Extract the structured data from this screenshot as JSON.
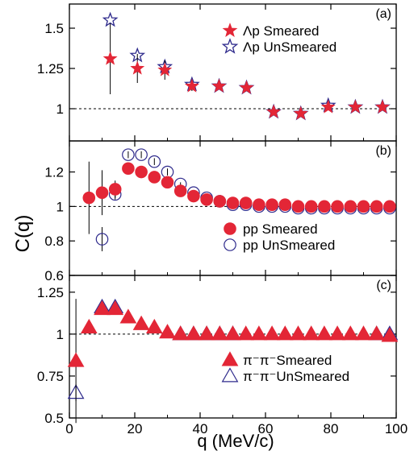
{
  "colors": {
    "red": "#e32636",
    "blue": "#2e2a8c",
    "axis": "#000000",
    "errbar": "#000000"
  },
  "chart_data": {
    "type": "scatter",
    "xlabel": "q (MeV/c)",
    "ylabel": "C(q)",
    "xlim": [
      0,
      100
    ],
    "x_ticks": [
      0,
      20,
      40,
      60,
      80,
      100
    ],
    "x_tick_labels": [
      "0",
      "20",
      "40",
      "60",
      "80",
      "100"
    ],
    "panels": [
      {
        "label": "(a)",
        "ylim": [
          0.8,
          1.65
        ],
        "y_ticks": [
          1,
          1.25,
          1.5
        ],
        "y_tick_labels": [
          "1",
          "1.25",
          "1.5"
        ],
        "reference_line": 1,
        "marker": "star",
        "series": [
          {
            "name": "Λp Smeared",
            "filled": true,
            "color": "red",
            "points": [
              {
                "x": 12.5,
                "y": 1.31,
                "err": 0.22
              },
              {
                "x": 20.8,
                "y": 1.25,
                "err": 0.09
              },
              {
                "x": 29.2,
                "y": 1.24,
                "err": 0.06
              },
              {
                "x": 37.5,
                "y": 1.14,
                "err": 0.03
              },
              {
                "x": 45.8,
                "y": 1.14,
                "err": 0.02
              },
              {
                "x": 54.2,
                "y": 1.13,
                "err": 0.02
              },
              {
                "x": 62.5,
                "y": 0.98,
                "err": 0.02
              },
              {
                "x": 70.8,
                "y": 0.97,
                "err": 0.02
              },
              {
                "x": 79.2,
                "y": 1.01,
                "err": 0.01
              },
              {
                "x": 87.5,
                "y": 1.01,
                "err": 0.01
              },
              {
                "x": 95.8,
                "y": 1.01,
                "err": 0.01
              }
            ]
          },
          {
            "name": "Λp UnSmeared",
            "filled": false,
            "color": "blue",
            "points": [
              {
                "x": 12.5,
                "y": 1.55,
                "err": 0.0
              },
              {
                "x": 20.8,
                "y": 1.33,
                "err": 0.0
              },
              {
                "x": 29.2,
                "y": 1.26,
                "err": 0.0
              },
              {
                "x": 37.5,
                "y": 1.15,
                "err": 0.0
              },
              {
                "x": 45.8,
                "y": 1.14,
                "err": 0.0
              },
              {
                "x": 54.2,
                "y": 1.13,
                "err": 0.0
              },
              {
                "x": 62.5,
                "y": 0.98,
                "err": 0.0
              },
              {
                "x": 70.8,
                "y": 0.97,
                "err": 0.0
              },
              {
                "x": 79.2,
                "y": 1.02,
                "err": 0.0
              },
              {
                "x": 87.5,
                "y": 1.01,
                "err": 0.0
              },
              {
                "x": 95.8,
                "y": 1.01,
                "err": 0.0
              }
            ]
          }
        ]
      },
      {
        "label": "(b)",
        "ylim": [
          0.6,
          1.38
        ],
        "y_ticks": [
          0.6,
          0.8,
          1,
          1.2
        ],
        "y_tick_labels": [
          "0.6",
          "0.8",
          "1",
          "1.2"
        ],
        "reference_line": 1,
        "marker": "circle",
        "series": [
          {
            "name": "pp Smeared",
            "filled": true,
            "color": "red",
            "points": [
              {
                "x": 6,
                "y": 1.05,
                "err": 0.21
              },
              {
                "x": 10,
                "y": 1.08,
                "err": 0.13
              },
              {
                "x": 14,
                "y": 1.1,
                "err": 0.05
              },
              {
                "x": 18,
                "y": 1.22,
                "err": 0.03
              },
              {
                "x": 22,
                "y": 1.2,
                "err": 0.02
              },
              {
                "x": 26,
                "y": 1.17,
                "err": 0.02
              },
              {
                "x": 30,
                "y": 1.14,
                "err": 0.02
              },
              {
                "x": 34,
                "y": 1.09,
                "err": 0.01
              },
              {
                "x": 38,
                "y": 1.06,
                "err": 0.01
              },
              {
                "x": 42,
                "y": 1.04,
                "err": 0.01
              },
              {
                "x": 46,
                "y": 1.03,
                "err": 0.01
              },
              {
                "x": 50,
                "y": 1.02,
                "err": 0.01
              },
              {
                "x": 54,
                "y": 1.02,
                "err": 0.01
              },
              {
                "x": 58,
                "y": 1.01,
                "err": 0.01
              },
              {
                "x": 62,
                "y": 1.01,
                "err": 0.01
              },
              {
                "x": 66,
                "y": 1.01,
                "err": 0.0
              },
              {
                "x": 70,
                "y": 1.0,
                "err": 0.0
              },
              {
                "x": 74,
                "y": 1.0,
                "err": 0.0
              },
              {
                "x": 78,
                "y": 1.0,
                "err": 0.0
              },
              {
                "x": 82,
                "y": 1.0,
                "err": 0.0
              },
              {
                "x": 86,
                "y": 1.0,
                "err": 0.0
              },
              {
                "x": 90,
                "y": 1.0,
                "err": 0.0
              },
              {
                "x": 94,
                "y": 1.0,
                "err": 0.0
              },
              {
                "x": 98,
                "y": 1.0,
                "err": 0.0
              }
            ]
          },
          {
            "name": "pp UnSmeared",
            "filled": false,
            "color": "blue",
            "points": [
              {
                "x": 10,
                "y": 0.81,
                "err": 0.07
              },
              {
                "x": 14,
                "y": 1.07,
                "err": 0.03
              },
              {
                "x": 18,
                "y": 1.3,
                "err": 0.02
              },
              {
                "x": 22,
                "y": 1.3,
                "err": 0.02
              },
              {
                "x": 26,
                "y": 1.26,
                "err": 0.02
              },
              {
                "x": 30,
                "y": 1.2,
                "err": 0.02
              },
              {
                "x": 34,
                "y": 1.13,
                "err": 0.01
              },
              {
                "x": 38,
                "y": 1.08,
                "err": 0.01
              },
              {
                "x": 42,
                "y": 1.05,
                "err": 0.01
              },
              {
                "x": 46,
                "y": 1.03,
                "err": 0.01
              },
              {
                "x": 50,
                "y": 1.01,
                "err": 0.0
              },
              {
                "x": 54,
                "y": 1.01,
                "err": 0.0
              },
              {
                "x": 58,
                "y": 1.0,
                "err": 0.0
              },
              {
                "x": 62,
                "y": 1.0,
                "err": 0.0
              },
              {
                "x": 66,
                "y": 1.0,
                "err": 0.0
              },
              {
                "x": 70,
                "y": 0.99,
                "err": 0.0
              },
              {
                "x": 74,
                "y": 0.99,
                "err": 0.0
              },
              {
                "x": 78,
                "y": 0.99,
                "err": 0.0
              },
              {
                "x": 82,
                "y": 0.99,
                "err": 0.0
              },
              {
                "x": 86,
                "y": 0.99,
                "err": 0.0
              },
              {
                "x": 90,
                "y": 0.99,
                "err": 0.0
              },
              {
                "x": 94,
                "y": 0.99,
                "err": 0.0
              },
              {
                "x": 98,
                "y": 0.99,
                "err": 0.0
              }
            ]
          }
        ]
      },
      {
        "label": "(c)",
        "ylim": [
          0.5,
          1.35
        ],
        "y_ticks": [
          0.5,
          0.75,
          1,
          1.25
        ],
        "y_tick_labels": [
          "0.5",
          "0.75",
          "1",
          "1.25"
        ],
        "reference_line": 1,
        "marker": "triangle",
        "series": [
          {
            "name": "π⁻π⁻Smeared",
            "filled": true,
            "color": "red",
            "points": [
              {
                "x": 2,
                "y": 0.84,
                "err": 0.37
              },
              {
                "x": 6,
                "y": 1.04,
                "err": 0.04
              },
              {
                "x": 10,
                "y": 1.15,
                "err": 0.02
              },
              {
                "x": 14,
                "y": 1.15,
                "err": 0.02
              },
              {
                "x": 18,
                "y": 1.1,
                "err": 0.01
              },
              {
                "x": 22,
                "y": 1.06,
                "err": 0.01
              },
              {
                "x": 26,
                "y": 1.04,
                "err": 0.01
              },
              {
                "x": 30,
                "y": 1.01,
                "err": 0.0
              },
              {
                "x": 34,
                "y": 1.0,
                "err": 0.0
              },
              {
                "x": 38,
                "y": 1.0,
                "err": 0.0
              },
              {
                "x": 42,
                "y": 1.0,
                "err": 0.0
              },
              {
                "x": 46,
                "y": 1.0,
                "err": 0.0
              },
              {
                "x": 50,
                "y": 1.0,
                "err": 0.0
              },
              {
                "x": 54,
                "y": 1.0,
                "err": 0.0
              },
              {
                "x": 58,
                "y": 1.0,
                "err": 0.0
              },
              {
                "x": 62,
                "y": 1.0,
                "err": 0.0
              },
              {
                "x": 66,
                "y": 1.0,
                "err": 0.0
              },
              {
                "x": 70,
                "y": 1.0,
                "err": 0.0
              },
              {
                "x": 74,
                "y": 1.0,
                "err": 0.0
              },
              {
                "x": 78,
                "y": 1.0,
                "err": 0.0
              },
              {
                "x": 82,
                "y": 1.0,
                "err": 0.0
              },
              {
                "x": 86,
                "y": 1.0,
                "err": 0.0
              },
              {
                "x": 90,
                "y": 1.0,
                "err": 0.0
              },
              {
                "x": 94,
                "y": 1.0,
                "err": 0.0
              },
              {
                "x": 98,
                "y": 0.99,
                "err": 0.0
              }
            ]
          },
          {
            "name": "π⁻π⁻UnSmeared",
            "filled": false,
            "color": "blue",
            "points": [
              {
                "x": 2,
                "y": 0.65,
                "err": 0.05
              },
              {
                "x": 10,
                "y": 1.16,
                "err": 0.0
              },
              {
                "x": 14,
                "y": 1.16,
                "err": 0.0
              },
              {
                "x": 34,
                "y": 1.0,
                "err": 0.0
              },
              {
                "x": 38,
                "y": 1.0,
                "err": 0.0
              },
              {
                "x": 42,
                "y": 1.0,
                "err": 0.0
              },
              {
                "x": 46,
                "y": 1.0,
                "err": 0.0
              },
              {
                "x": 50,
                "y": 1.0,
                "err": 0.0
              },
              {
                "x": 94,
                "y": 1.0,
                "err": 0.0
              },
              {
                "x": 98,
                "y": 1.0,
                "err": 0.0
              }
            ]
          }
        ]
      }
    ]
  },
  "legends": {
    "a": {
      "smeared": "Λp Smeared",
      "unsmeared": "Λp UnSmeared"
    },
    "b": {
      "smeared": "pp Smeared",
      "unsmeared": "pp UnSmeared"
    },
    "c": {
      "smeared": "π⁻π⁻Smeared",
      "unsmeared": "π⁻π⁻UnSmeared"
    }
  }
}
